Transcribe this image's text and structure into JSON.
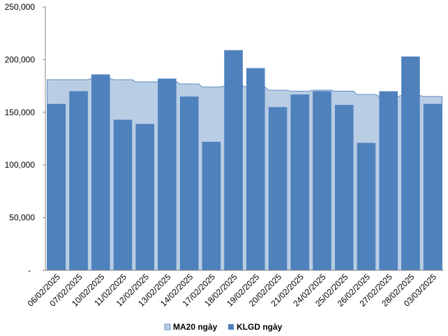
{
  "chart_data": {
    "type": "bar",
    "categories": [
      "06/02/2025",
      "07/02/2025",
      "10/02/2025",
      "11/02/2025",
      "12/02/2025",
      "13/02/2025",
      "14/02/2025",
      "17/02/2025",
      "18/02/2025",
      "19/02/2025",
      "20/02/2025",
      "21/02/2025",
      "24/02/2025",
      "25/02/2025",
      "26/02/2025",
      "27/02/2025",
      "28/02/2025",
      "03/03/2025"
    ],
    "series": [
      {
        "name": "MA20 ngày",
        "kind": "area",
        "color": "#b9cde5",
        "edge": "#4f81bd",
        "values": [
          181000,
          181000,
          182000,
          181000,
          179000,
          179000,
          177000,
          174000,
          175000,
          174000,
          171000,
          170000,
          171000,
          170000,
          167000,
          165000,
          166000,
          165000
        ]
      },
      {
        "name": "KLGD ngày",
        "kind": "bar",
        "color": "#4f81bd",
        "values": [
          158000,
          170000,
          186000,
          143000,
          139000,
          182000,
          165000,
          122000,
          209000,
          192000,
          155000,
          167000,
          170000,
          157000,
          121000,
          170000,
          203000,
          158000
        ]
      }
    ],
    "y_ticks": [
      "-",
      "50,000",
      "100,000",
      "150,000",
      "200,000",
      "250,000"
    ],
    "ylim": [
      0,
      250000
    ],
    "xlabel": "",
    "ylabel": "",
    "grid": false,
    "legend_position": "bottom"
  }
}
